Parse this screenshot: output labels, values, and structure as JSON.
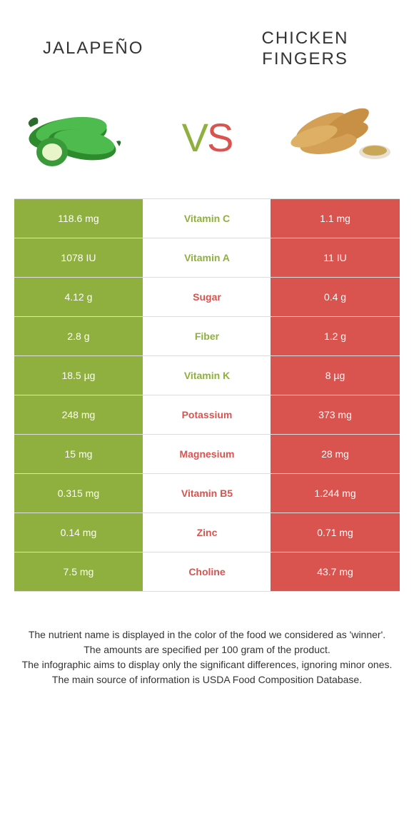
{
  "header": {
    "left_title": "JALAPEÑO",
    "right_title": "CHICKEN FINGERS",
    "vs_v": "V",
    "vs_s": "S"
  },
  "colors": {
    "green": "#8fb03e",
    "red": "#d9534f",
    "border": "#dddddd",
    "text": "#333333",
    "white": "#ffffff"
  },
  "table": {
    "left_image_alt": "jalapeno",
    "right_image_alt": "chicken-fingers",
    "rows": [
      {
        "left": "118.6 mg",
        "label": "Vitamin C",
        "right": "1.1 mg",
        "winner": "green"
      },
      {
        "left": "1078 IU",
        "label": "Vitamin A",
        "right": "11 IU",
        "winner": "green"
      },
      {
        "left": "4.12 g",
        "label": "Sugar",
        "right": "0.4 g",
        "winner": "red"
      },
      {
        "left": "2.8 g",
        "label": "Fiber",
        "right": "1.2 g",
        "winner": "green"
      },
      {
        "left": "18.5 µg",
        "label": "Vitamin K",
        "right": "8 µg",
        "winner": "green"
      },
      {
        "left": "248 mg",
        "label": "Potassium",
        "right": "373 mg",
        "winner": "red"
      },
      {
        "left": "15 mg",
        "label": "Magnesium",
        "right": "28 mg",
        "winner": "red"
      },
      {
        "left": "0.315 mg",
        "label": "Vitamin B5",
        "right": "1.244 mg",
        "winner": "red"
      },
      {
        "left": "0.14 mg",
        "label": "Zinc",
        "right": "0.71 mg",
        "winner": "red"
      },
      {
        "left": "7.5 mg",
        "label": "Choline",
        "right": "43.7 mg",
        "winner": "red"
      }
    ]
  },
  "footnote": {
    "line1": "The nutrient name is displayed in the color of the food we considered as 'winner'.",
    "line2": "The amounts are specified per 100 gram of the product.",
    "line3": "The infographic aims to display only the significant differences, ignoring minor ones.",
    "line4": "The main source of information is USDA Food Composition Database."
  }
}
